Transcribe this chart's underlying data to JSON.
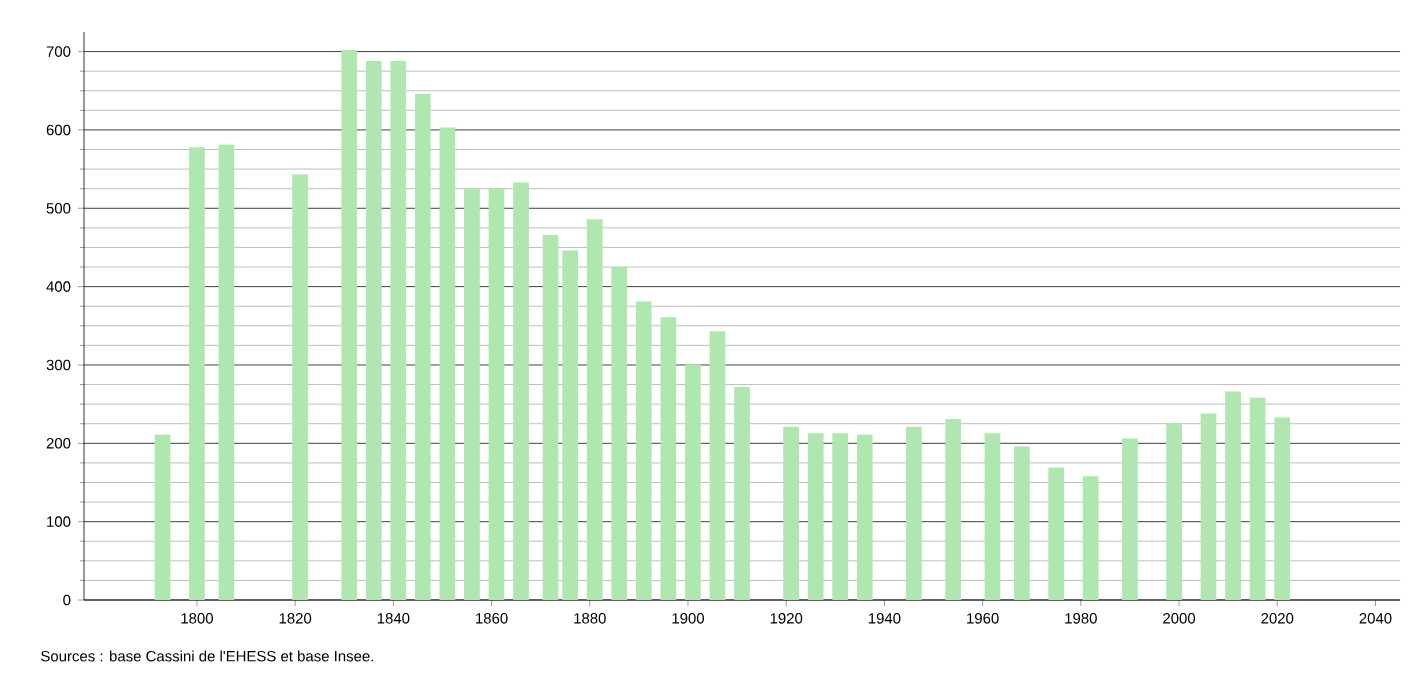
{
  "chart_data": {
    "type": "bar",
    "x": [
      1793,
      1800,
      1806,
      1821,
      1831,
      1836,
      1841,
      1846,
      1851,
      1856,
      1861,
      1866,
      1872,
      1876,
      1881,
      1886,
      1891,
      1896,
      1901,
      1906,
      1911,
      1921,
      1926,
      1931,
      1936,
      1946,
      1954,
      1962,
      1968,
      1975,
      1982,
      1990,
      1999,
      2006,
      2011,
      2016,
      2021
    ],
    "values": [
      211,
      578,
      581,
      543,
      702,
      688,
      688,
      646,
      603,
      525,
      525,
      533,
      466,
      446,
      486,
      425,
      381,
      361,
      301,
      343,
      272,
      221,
      213,
      213,
      211,
      221,
      231,
      213,
      196,
      169,
      158,
      206,
      226,
      238,
      266,
      258,
      233
    ],
    "color": "#b0e6b0",
    "xlim": [
      1777,
      2045
    ],
    "ylim": [
      0,
      725
    ],
    "xticks": [
      1800,
      1820,
      1840,
      1860,
      1880,
      1900,
      1920,
      1940,
      1960,
      1980,
      2000,
      2020,
      2040
    ],
    "yticks": [
      0,
      100,
      200,
      300,
      400,
      500,
      600,
      700
    ],
    "grid": "y",
    "annotations": [
      "Sources : base Cassini de l'EHESS et base Insee."
    ]
  }
}
